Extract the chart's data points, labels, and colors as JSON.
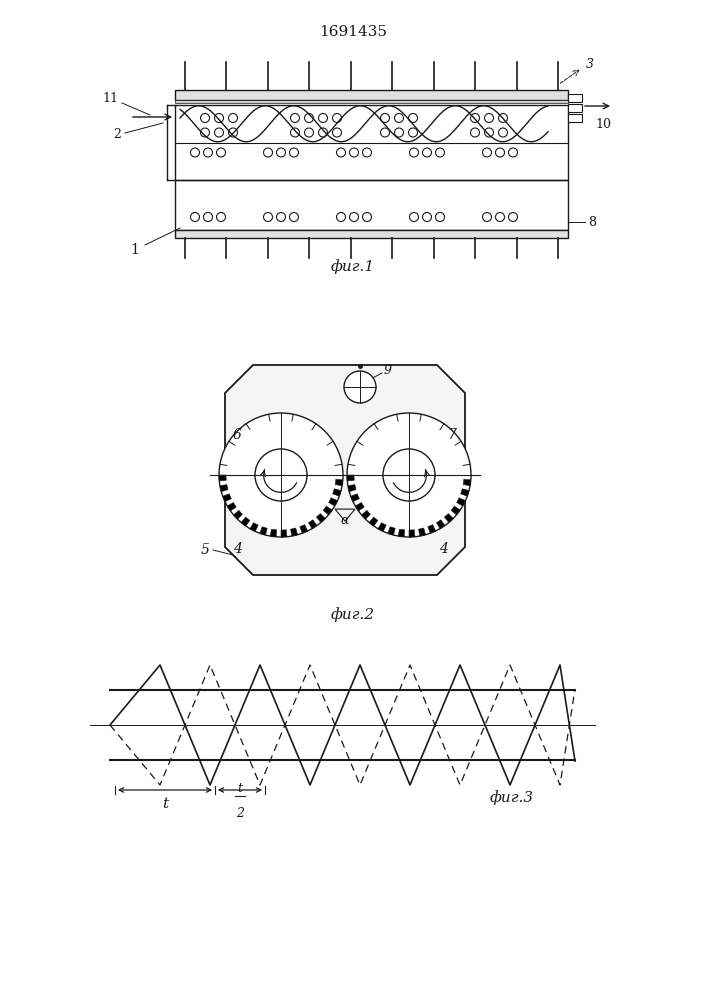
{
  "title": "1691435",
  "fig1_label": "фиг.1",
  "fig2_label": "фиг.2",
  "fig3_label": "фиг.3",
  "bg_color": "#ffffff",
  "line_color": "#1a1a1a"
}
